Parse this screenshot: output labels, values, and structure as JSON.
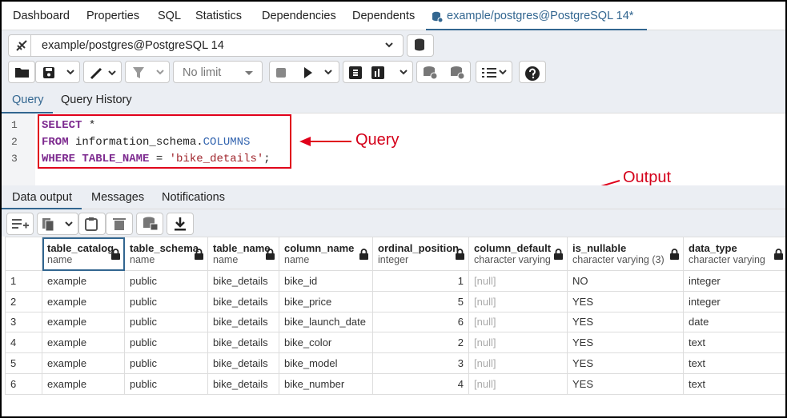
{
  "tabs": [
    "Dashboard",
    "Properties",
    "SQL",
    "Statistics",
    "Dependencies",
    "Dependents",
    "example/postgres@PostgreSQL 14*"
  ],
  "connection": "example/postgres@PostgreSQL 14",
  "limit": "No limit",
  "editor_tabs": [
    "Query",
    "Query History"
  ],
  "code": {
    "line_numbers": [
      1,
      2,
      3
    ],
    "lines": [
      [
        "SELECT",
        " *"
      ],
      [
        "FROM",
        " information_schema.",
        "COLUMNS"
      ],
      [
        "WHERE",
        " TABLE_NAME",
        " = ",
        "'bike_details'",
        ";"
      ]
    ]
  },
  "annotations": {
    "query": "Query",
    "output": "Output"
  },
  "output_tabs": [
    "Data output",
    "Messages",
    "Notifications"
  ],
  "table": {
    "columns": [
      {
        "name": "table_catalog",
        "type": "name"
      },
      {
        "name": "table_schema",
        "type": "name"
      },
      {
        "name": "table_name",
        "type": "name"
      },
      {
        "name": "column_name",
        "type": "name"
      },
      {
        "name": "ordinal_position",
        "type": "integer"
      },
      {
        "name": "column_default",
        "type": "character varying"
      },
      {
        "name": "is_nullable",
        "type": "character varying (3)"
      },
      {
        "name": "data_type",
        "type": "character varying"
      }
    ],
    "row_numbers": [
      1,
      2,
      3,
      4,
      5,
      6
    ],
    "rows": [
      [
        "example",
        "public",
        "bike_details",
        "bike_id",
        1,
        "[null]",
        "NO",
        "integer"
      ],
      [
        "example",
        "public",
        "bike_details",
        "bike_price",
        5,
        "[null]",
        "YES",
        "integer"
      ],
      [
        "example",
        "public",
        "bike_details",
        "bike_launch_date",
        6,
        "[null]",
        "YES",
        "date"
      ],
      [
        "example",
        "public",
        "bike_details",
        "bike_color",
        2,
        "[null]",
        "YES",
        "text"
      ],
      [
        "example",
        "public",
        "bike_details",
        "bike_model",
        3,
        "[null]",
        "YES",
        "text"
      ],
      [
        "example",
        "public",
        "bike_details",
        "bike_number",
        4,
        "[null]",
        "YES",
        "text"
      ]
    ]
  }
}
